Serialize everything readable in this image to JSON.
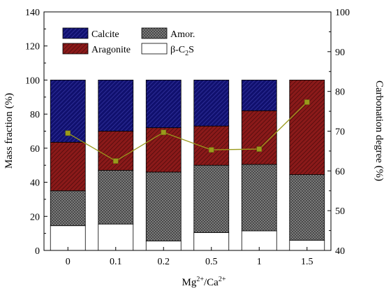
{
  "chart_data": {
    "type": "bar",
    "stacked": true,
    "categories": [
      "0",
      "0.1",
      "0.2",
      "0.5",
      "1",
      "1.5"
    ],
    "xlabel": {
      "base": "Mg",
      "sup1": "2+",
      "mid": "/Ca",
      "sup2": "2+"
    },
    "ylabel": "Mass fraction (%)",
    "y2label": "Carbonation degree (%)",
    "ylim": [
      0,
      140
    ],
    "y2lim": [
      40,
      100
    ],
    "yticks": [
      0,
      20,
      40,
      60,
      80,
      100,
      120,
      140
    ],
    "y2ticks": [
      40,
      50,
      60,
      70,
      80,
      90,
      100
    ],
    "legend_position": "top-left",
    "series": [
      {
        "name": "β-C2S",
        "label_parts": [
          "β-C",
          "2",
          "S"
        ],
        "color": "#ffffff",
        "pattern": "none",
        "values": [
          14.5,
          15.5,
          5.5,
          10.5,
          11.5,
          6.0
        ]
      },
      {
        "name": "Amor.",
        "label_parts": [
          "Amor.",
          "",
          ""
        ],
        "color": "#6e6e6e",
        "pattern": "dots",
        "values": [
          20.5,
          31.5,
          40.5,
          39.5,
          39.0,
          38.5
        ]
      },
      {
        "name": "Aragonite",
        "label_parts": [
          "Aragonite",
          "",
          ""
        ],
        "color": "#8b1a1a",
        "pattern": "hatch",
        "values": [
          28.5,
          23.0,
          26.0,
          23.0,
          31.5,
          55.5
        ]
      },
      {
        "name": "Calcite",
        "label_parts": [
          "Calcite",
          "",
          ""
        ],
        "color": "#10106e",
        "pattern": "hatch",
        "values": [
          36.5,
          30.0,
          28.0,
          27.0,
          18.0,
          0.0
        ]
      }
    ],
    "line": {
      "axis": "right",
      "color": "#9a9a1c",
      "values": [
        69.5,
        62.5,
        69.7,
        65.3,
        65.5,
        77.3
      ]
    }
  }
}
